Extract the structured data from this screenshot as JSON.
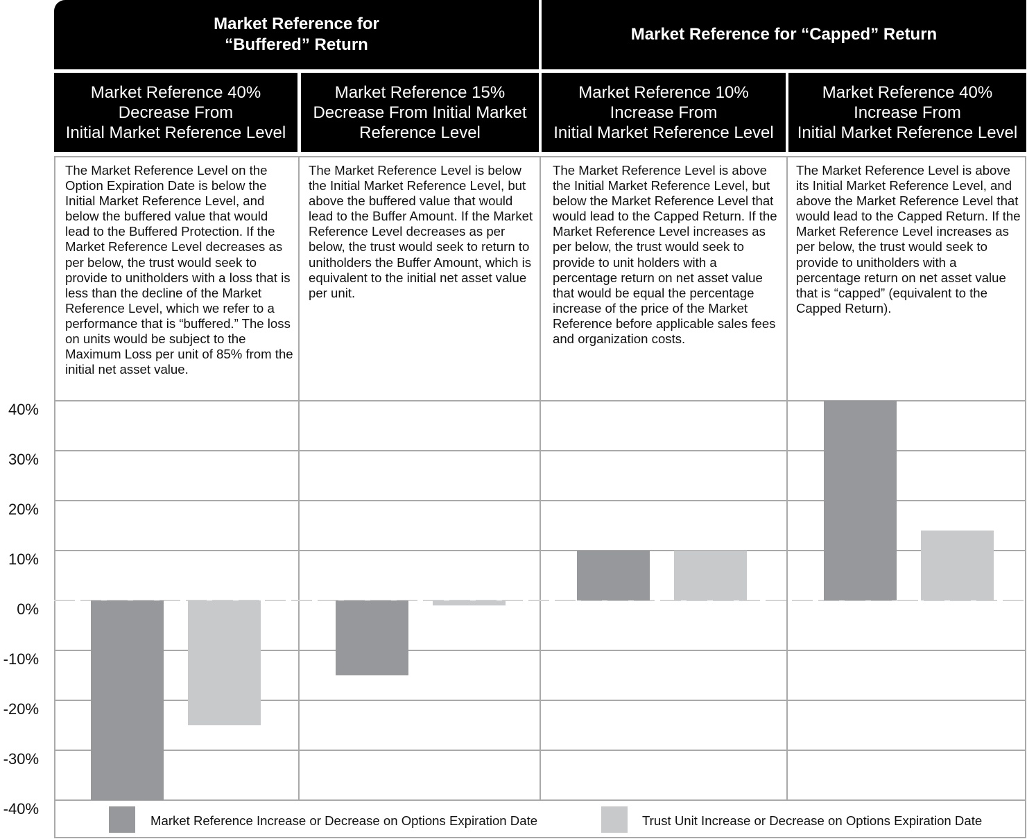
{
  "headers": {
    "buffered": "Market Reference for\n“Buffered” Return",
    "capped": "Market Reference for “Capped” Return"
  },
  "scenarios": [
    {
      "title": "Market Reference 40%\nDecrease From\nInitial Market Reference Level",
      "description": "The Market Reference Level on the Option Expiration Date is below the Initial Market Reference Level, and below the buffered value that would lead to the Buffered Protection. If the Market Reference Level decreases as per below, the trust would seek to provide to unitholders with a loss that is less than the decline of the Market Reference Level, which we refer to a performance that is “buffered.” The loss on units would be subject to the Maximum Loss per unit of 85% from the initial net asset value."
    },
    {
      "title": "Market Reference 15%\nDecrease From Initial Market\nReference Level",
      "description": "The Market Reference Level is below the Initial Market Reference Level, but above the buffered value that would lead to the Buffer Amount. If the Market Reference Level decreases as per below, the trust would seek to return to unitholders the Buffer Amount, which is equivalent to the initial net asset value per unit."
    },
    {
      "title": "Market Reference 10%\nIncrease From\nInitial Market Reference Level",
      "description": "The Market Reference Level is above the Initial Market Reference Level, but below the Market Reference Level that would lead to the Capped Return. If the Market Reference Level increases as per below, the trust would seek to provide to unit holders with a percentage return on net asset value that would be equal the percentage increase of the price of the Market Reference before applicable sales fees and organization costs."
    },
    {
      "title": "Market Reference 40%\nIncrease From\nInitial Market Reference Level",
      "description": "The Market Reference Level is above its Initial Market Reference Level, and above the Market Reference Level that would lead to the Capped Return. If the Market Reference Level increases as per below, the trust would seek to provide to unitholders with a percentage return on net asset value that is “capped” (equivalent to the Capped Return)."
    }
  ],
  "chart_data": {
    "type": "bar",
    "categories": [
      "Market Reference 40% Decrease From Initial Market Reference Level",
      "Market Reference 15% Decrease From Initial Market Reference Level",
      "Market Reference 10% Increase From Initial Market Reference Level",
      "Market Reference 40% Increase From Initial Market Reference Level"
    ],
    "series": [
      {
        "name": "Market Reference Increase or Decrease on Options Expiration Date",
        "color": "#97989c",
        "values": [
          -40,
          -15,
          10,
          40
        ]
      },
      {
        "name": "Trust Unit Increase or Decrease on Options Expiration Date",
        "color": "#c8c9cb",
        "values": [
          -25,
          -1,
          10,
          14
        ]
      }
    ],
    "ylim": [
      -40,
      40
    ],
    "yticks": [
      "40%",
      "30%",
      "20%",
      "10%",
      "0%",
      "-10%",
      "-20%",
      "-30%",
      "-40%"
    ],
    "grid": true,
    "legend": "bottom"
  }
}
